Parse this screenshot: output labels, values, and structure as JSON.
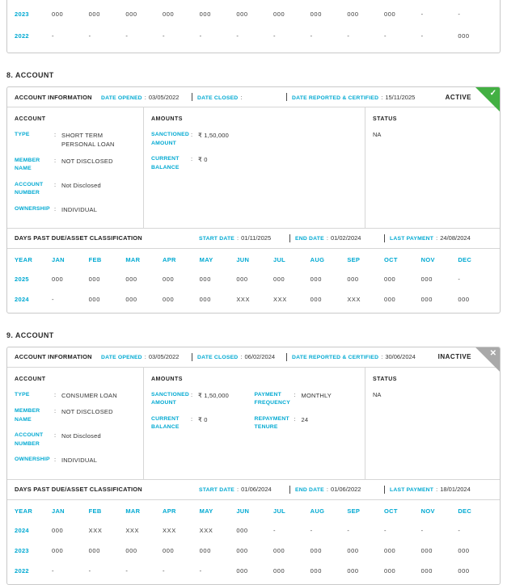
{
  "colors": {
    "accent": "#00a9d2",
    "active_green": "#43b043",
    "inactive_gray": "#a9a9a9"
  },
  "top_table": {
    "rows": [
      {
        "year": "2023",
        "values": [
          "000",
          "000",
          "000",
          "000",
          "000",
          "000",
          "000",
          "000",
          "000",
          "000",
          "-",
          "-"
        ]
      },
      {
        "year": "2022",
        "values": [
          "-",
          "-",
          "-",
          "-",
          "-",
          "-",
          "-",
          "-",
          "-",
          "-",
          "-",
          "000"
        ]
      }
    ]
  },
  "sections": [
    {
      "title": "8. ACCOUNT",
      "info": {
        "title": "ACCOUNT INFORMATION",
        "date_opened_label": "DATE OPENED",
        "date_opened": "03/05/2022",
        "date_closed_label": "DATE CLOSED",
        "date_closed": "",
        "date_reported_label": "DATE REPORTED & CERTIFIED",
        "date_reported": "15/11/2025",
        "status": "ACTIVE",
        "corner_class": "corner corner-active",
        "corner_glyph": "✓"
      },
      "details": {
        "account_header": "ACCOUNT",
        "account_fields": [
          {
            "label": "TYPE",
            "value": "SHORT TERM PERSONAL LOAN"
          },
          {
            "label": "MEMBER NAME",
            "value": "NOT DISCLOSED"
          },
          {
            "label": "ACCOUNT NUMBER",
            "value": "Not Disclosed"
          },
          {
            "label": "OWNERSHIP",
            "value": "INDIVIDUAL"
          }
        ],
        "amounts_header": "AMOUNTS",
        "amounts_fields": [
          {
            "label": "SANCTIONED AMOUNT",
            "value": "₹ 1,50,000"
          },
          {
            "label": "CURRENT BALANCE",
            "value": "₹ 0"
          }
        ],
        "amounts_fields2": [],
        "status_header": "STATUS",
        "status_value": "NA"
      },
      "dpd": {
        "title": "DAYS PAST DUE/ASSET CLASSIFICATION",
        "start_label": "START DATE",
        "start": "01/11/2025",
        "end_label": "END DATE",
        "end": "01/02/2024",
        "last_label": "LAST PAYMENT",
        "last": "24/08/2024",
        "table": {
          "year_header": "YEAR",
          "months": [
            "JAN",
            "FEB",
            "MAR",
            "APR",
            "MAY",
            "JUN",
            "JUL",
            "AUG",
            "SEP",
            "OCT",
            "NOV",
            "DEC"
          ],
          "rows": [
            {
              "year": "2025",
              "values": [
                "000",
                "000",
                "000",
                "000",
                "000",
                "000",
                "000",
                "000",
                "000",
                "000",
                "000",
                "-"
              ]
            },
            {
              "year": "2024",
              "values": [
                "-",
                "000",
                "000",
                "000",
                "000",
                "XXX",
                "XXX",
                "000",
                "XXX",
                "000",
                "000",
                "000"
              ]
            }
          ]
        }
      }
    },
    {
      "title": "9. ACCOUNT",
      "info": {
        "title": "ACCOUNT INFORMATION",
        "date_opened_label": "DATE OPENED",
        "date_opened": "03/05/2022",
        "date_closed_label": "DATE CLOSED",
        "date_closed": "06/02/2024",
        "date_reported_label": "DATE REPORTED & CERTIFIED",
        "date_reported": "30/06/2024",
        "status": "INACTIVE",
        "corner_class": "corner corner-inactive",
        "corner_glyph": "✕"
      },
      "details": {
        "account_header": "ACCOUNT",
        "account_fields": [
          {
            "label": "TYPE",
            "value": "CONSUMER LOAN"
          },
          {
            "label": "MEMBER NAME",
            "value": "NOT DISCLOSED"
          },
          {
            "label": "ACCOUNT NUMBER",
            "value": "Not Disclosed"
          },
          {
            "label": "OWNERSHIP",
            "value": "INDIVIDUAL"
          }
        ],
        "amounts_header": "AMOUNTS",
        "amounts_fields": [
          {
            "label": "SANCTIONED AMOUNT",
            "value": "₹ 1,50,000"
          },
          {
            "label": "CURRENT BALANCE",
            "value": "₹ 0"
          }
        ],
        "amounts_fields2": [
          {
            "label": "PAYMENT FREQUENCY",
            "value": "MONTHLY"
          },
          {
            "label": "REPAYMENT TENURE",
            "value": "24"
          }
        ],
        "status_header": "STATUS",
        "status_value": "NA"
      },
      "dpd": {
        "title": "DAYS PAST DUE/ASSET CLASSIFICATION",
        "start_label": "START DATE",
        "start": "01/06/2024",
        "end_label": "END DATE",
        "end": "01/06/2022",
        "last_label": "LAST PAYMENT",
        "last": "18/01/2024",
        "table": {
          "year_header": "YEAR",
          "months": [
            "JAN",
            "FEB",
            "MAR",
            "APR",
            "MAY",
            "JUN",
            "JUL",
            "AUG",
            "SEP",
            "OCT",
            "NOV",
            "DEC"
          ],
          "rows": [
            {
              "year": "2024",
              "values": [
                "000",
                "XXX",
                "XXX",
                "XXX",
                "XXX",
                "000",
                "-",
                "-",
                "-",
                "-",
                "-",
                "-"
              ]
            },
            {
              "year": "2023",
              "values": [
                "000",
                "000",
                "000",
                "000",
                "000",
                "000",
                "000",
                "000",
                "000",
                "000",
                "000",
                "000"
              ]
            },
            {
              "year": "2022",
              "values": [
                "-",
                "-",
                "-",
                "-",
                "-",
                "000",
                "000",
                "000",
                "000",
                "000",
                "000",
                "000"
              ]
            }
          ]
        }
      }
    }
  ]
}
